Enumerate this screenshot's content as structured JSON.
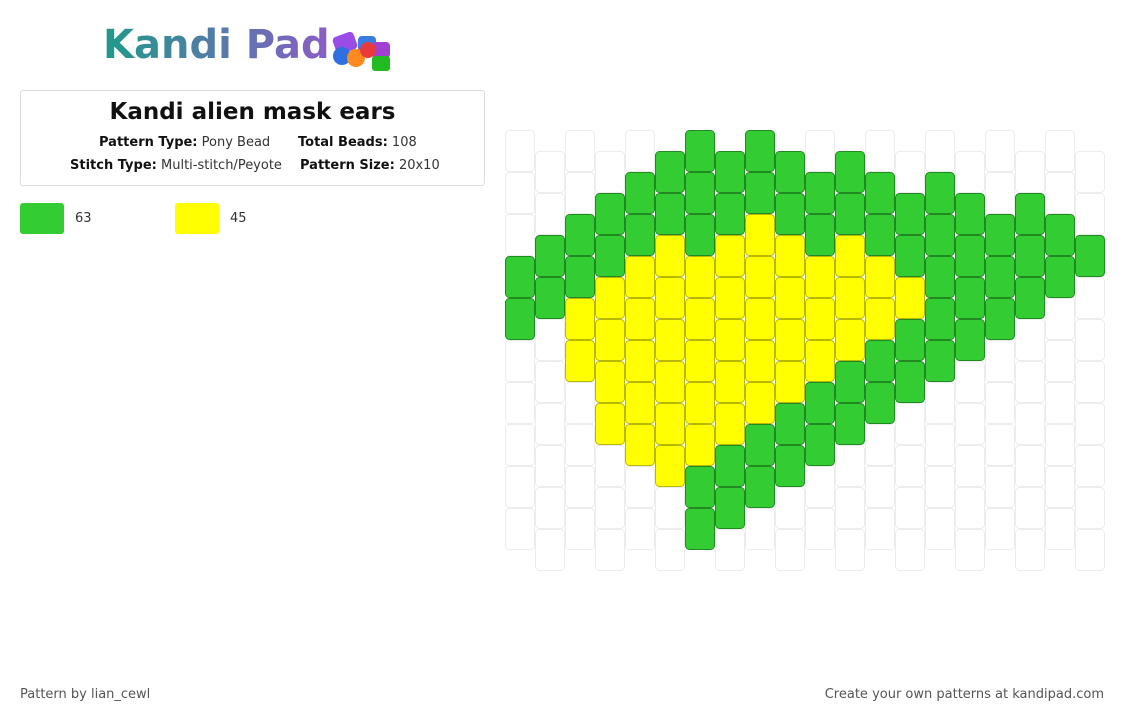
{
  "header": {
    "logo": "Kandi Pad"
  },
  "info": {
    "title": "Kandi alien mask ears",
    "fields": [
      {
        "label": "Pattern Type:",
        "value": "Pony Bead"
      },
      {
        "label": "Total Beads:",
        "value": "108"
      },
      {
        "label": "Stitch Type:",
        "value": "Multi-stitch/Peyote"
      },
      {
        "label": "Pattern Size:",
        "value": "20x10"
      }
    ]
  },
  "palette": [
    {
      "color": "#33cc33",
      "count": 63
    },
    {
      "color": "#ffff00",
      "count": 45
    }
  ],
  "pattern": {
    "columns": [
      [
        null,
        null,
        null,
        "#33cc33",
        "#33cc33",
        null,
        null,
        null,
        null,
        null
      ],
      [
        null,
        null,
        "#33cc33",
        "#33cc33",
        null,
        null,
        null,
        null,
        null,
        null
      ],
      [
        null,
        null,
        "#33cc33",
        "#33cc33",
        "#ffff00",
        "#ffff00",
        null,
        null,
        null,
        null
      ],
      [
        null,
        "#33cc33",
        "#33cc33",
        "#ffff00",
        "#ffff00",
        "#ffff00",
        "#ffff00",
        null,
        null,
        null
      ],
      [
        null,
        "#33cc33",
        "#33cc33",
        "#ffff00",
        "#ffff00",
        "#ffff00",
        "#ffff00",
        "#ffff00",
        null,
        null
      ],
      [
        "#33cc33",
        "#33cc33",
        "#ffff00",
        "#ffff00",
        "#ffff00",
        "#ffff00",
        "#ffff00",
        "#ffff00",
        null,
        null
      ],
      [
        "#33cc33",
        "#33cc33",
        "#33cc33",
        "#ffff00",
        "#ffff00",
        "#ffff00",
        "#ffff00",
        "#ffff00",
        "#33cc33",
        "#33cc33"
      ],
      [
        "#33cc33",
        "#33cc33",
        "#ffff00",
        "#ffff00",
        "#ffff00",
        "#ffff00",
        "#ffff00",
        "#33cc33",
        "#33cc33",
        null
      ],
      [
        "#33cc33",
        "#33cc33",
        "#ffff00",
        "#ffff00",
        "#ffff00",
        "#ffff00",
        "#ffff00",
        "#33cc33",
        "#33cc33",
        null
      ],
      [
        "#33cc33",
        "#33cc33",
        "#ffff00",
        "#ffff00",
        "#ffff00",
        "#ffff00",
        "#33cc33",
        "#33cc33",
        null,
        null
      ],
      [
        null,
        "#33cc33",
        "#33cc33",
        "#ffff00",
        "#ffff00",
        "#ffff00",
        "#33cc33",
        "#33cc33",
        null,
        null
      ],
      [
        "#33cc33",
        "#33cc33",
        "#ffff00",
        "#ffff00",
        "#ffff00",
        "#33cc33",
        "#33cc33",
        null,
        null,
        null
      ],
      [
        null,
        "#33cc33",
        "#33cc33",
        "#ffff00",
        "#ffff00",
        "#33cc33",
        "#33cc33",
        null,
        null,
        null
      ],
      [
        null,
        "#33cc33",
        "#33cc33",
        "#ffff00",
        "#33cc33",
        "#33cc33",
        null,
        null,
        null,
        null
      ],
      [
        null,
        "#33cc33",
        "#33cc33",
        "#33cc33",
        "#33cc33",
        "#33cc33",
        null,
        null,
        null,
        null
      ],
      [
        null,
        "#33cc33",
        "#33cc33",
        "#33cc33",
        "#33cc33",
        null,
        null,
        null,
        null,
        null
      ],
      [
        null,
        null,
        "#33cc33",
        "#33cc33",
        "#33cc33",
        null,
        null,
        null,
        null,
        null
      ],
      [
        null,
        "#33cc33",
        "#33cc33",
        "#33cc33",
        null,
        null,
        null,
        null,
        null,
        null
      ],
      [
        null,
        null,
        "#33cc33",
        "#33cc33",
        null,
        null,
        null,
        null,
        null,
        null
      ],
      [
        null,
        null,
        "#33cc33",
        null,
        null,
        null,
        null,
        null,
        null,
        null
      ]
    ]
  },
  "footer": {
    "left": "Pattern by lian_cewl",
    "right": "Create your own patterns at kandipad.com"
  }
}
